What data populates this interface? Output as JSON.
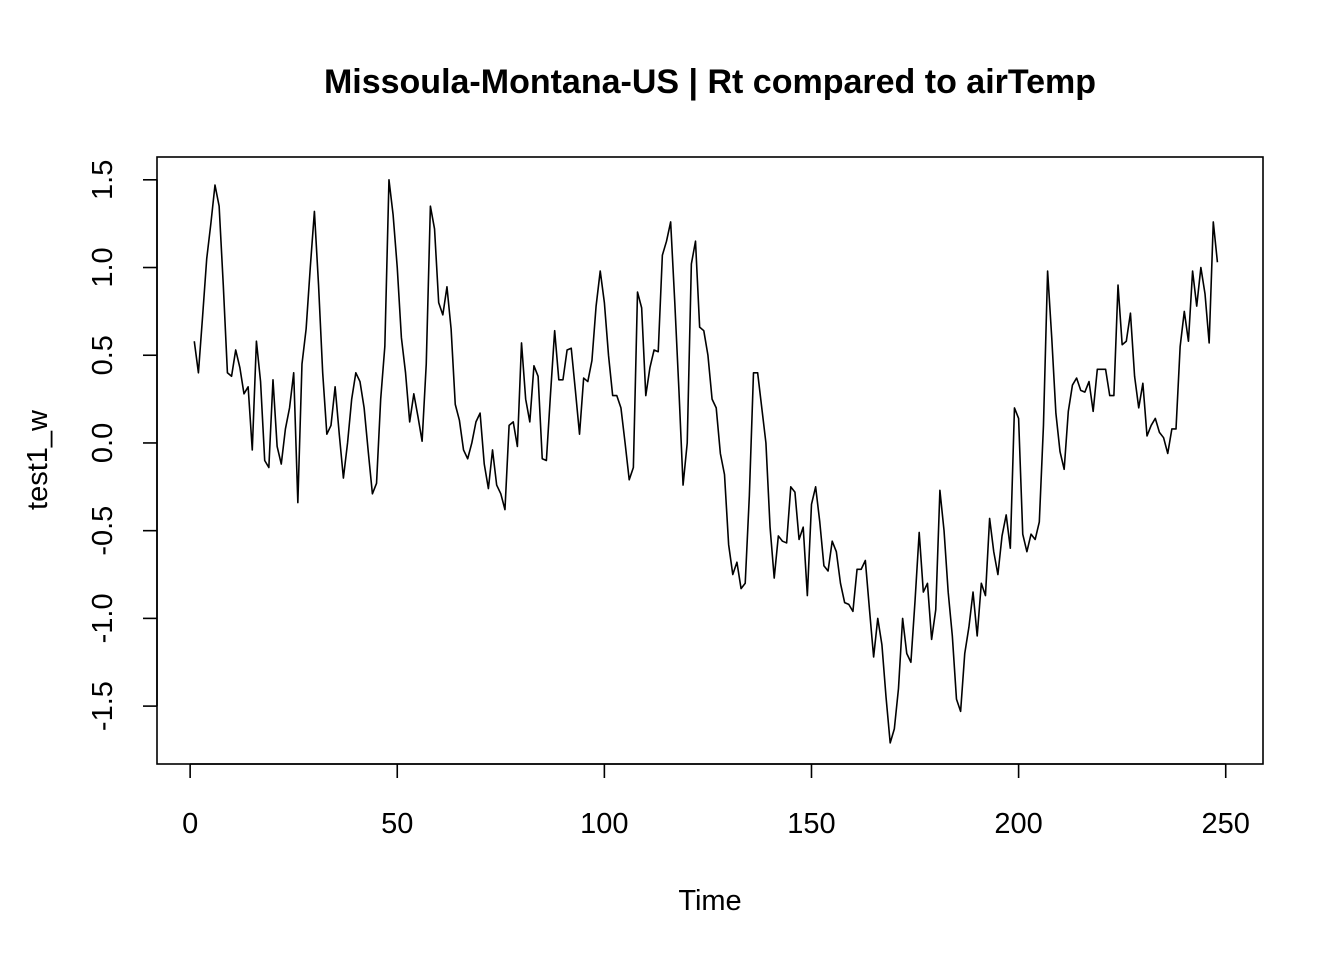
{
  "chart_data": {
    "type": "line",
    "title": "Missoula-Montana-US | Rt compared to airTemp",
    "xlabel": "Time",
    "ylabel": "test1_w",
    "xlim": [
      -8,
      259
    ],
    "ylim": [
      -1.83,
      1.63
    ],
    "x_ticks": [
      0,
      50,
      100,
      150,
      200,
      250
    ],
    "x_tick_labels": [
      "0",
      "50",
      "100",
      "150",
      "200",
      "250"
    ],
    "y_ticks": [
      -1.5,
      -1.0,
      -0.5,
      0.0,
      0.5,
      1.0,
      1.5
    ],
    "y_tick_labels": [
      "-1.5",
      "-1.0",
      "-0.5",
      "0.0",
      "0.5",
      "1.0",
      "1.5"
    ],
    "grid": false,
    "legend": "none",
    "line_color": "#000000",
    "x_start": 1,
    "series": [
      {
        "values": [
          0.58,
          0.4,
          0.72,
          1.05,
          1.25,
          1.47,
          1.35,
          0.9,
          0.4,
          0.38,
          0.53,
          0.43,
          0.28,
          0.32,
          -0.04,
          0.58,
          0.35,
          -0.1,
          -0.14,
          0.36,
          -0.02,
          -0.12,
          0.08,
          0.2,
          0.4,
          -0.34,
          0.45,
          0.65,
          1.0,
          1.32,
          0.9,
          0.4,
          0.05,
          0.1,
          0.32,
          0.05,
          -0.2,
          0.0,
          0.25,
          0.4,
          0.35,
          0.2,
          -0.05,
          -0.29,
          -0.23,
          0.25,
          0.55,
          1.5,
          1.3,
          1.0,
          0.6,
          0.4,
          0.12,
          0.28,
          0.15,
          0.01,
          0.45,
          1.35,
          1.22,
          0.8,
          0.73,
          0.89,
          0.65,
          0.22,
          0.13,
          -0.04,
          -0.09,
          0.0,
          0.12,
          0.17,
          -0.12,
          -0.26,
          -0.04,
          -0.24,
          -0.29,
          -0.38,
          0.1,
          0.12,
          -0.02,
          0.57,
          0.25,
          0.12,
          0.44,
          0.38,
          -0.09,
          -0.1,
          0.28,
          0.64,
          0.36,
          0.36,
          0.53,
          0.54,
          0.3,
          0.05,
          0.37,
          0.35,
          0.47,
          0.78,
          0.98,
          0.8,
          0.5,
          0.27,
          0.27,
          0.2,
          0.0,
          -0.21,
          -0.14,
          0.86,
          0.77,
          0.27,
          0.43,
          0.53,
          0.52,
          1.07,
          1.15,
          1.26,
          0.8,
          0.3,
          -0.24,
          0.0,
          1.02,
          1.15,
          0.66,
          0.64,
          0.5,
          0.25,
          0.2,
          -0.06,
          -0.18,
          -0.58,
          -0.75,
          -0.68,
          -0.83,
          -0.8,
          -0.3,
          0.4,
          0.4,
          0.2,
          0.0,
          -0.48,
          -0.77,
          -0.53,
          -0.56,
          -0.57,
          -0.25,
          -0.28,
          -0.55,
          -0.48,
          -0.87,
          -0.35,
          -0.25,
          -0.45,
          -0.7,
          -0.73,
          -0.56,
          -0.62,
          -0.8,
          -0.91,
          -0.92,
          -0.96,
          -0.72,
          -0.72,
          -0.67,
          -0.95,
          -1.22,
          -1.0,
          -1.15,
          -1.45,
          -1.71,
          -1.63,
          -1.4,
          -1.0,
          -1.2,
          -1.25,
          -0.9,
          -0.51,
          -0.85,
          -0.8,
          -1.12,
          -0.95,
          -0.27,
          -0.5,
          -0.85,
          -1.1,
          -1.46,
          -1.53,
          -1.2,
          -1.05,
          -0.85,
          -1.1,
          -0.8,
          -0.87,
          -0.43,
          -0.62,
          -0.75,
          -0.53,
          -0.41,
          -0.6,
          0.2,
          0.14,
          -0.52,
          -0.62,
          -0.52,
          -0.55,
          -0.45,
          0.1,
          0.98,
          0.6,
          0.17,
          -0.05,
          -0.15,
          0.18,
          0.33,
          0.37,
          0.3,
          0.29,
          0.35,
          0.18,
          0.42,
          0.42,
          0.42,
          0.27,
          0.27,
          0.9,
          0.56,
          0.58,
          0.74,
          0.38,
          0.2,
          0.34,
          0.04,
          0.1,
          0.14,
          0.06,
          0.03,
          -0.06,
          0.08,
          0.08,
          0.55,
          0.75,
          0.58,
          0.98,
          0.78,
          1.0,
          0.85,
          0.57,
          1.26,
          1.03
        ]
      }
    ]
  }
}
